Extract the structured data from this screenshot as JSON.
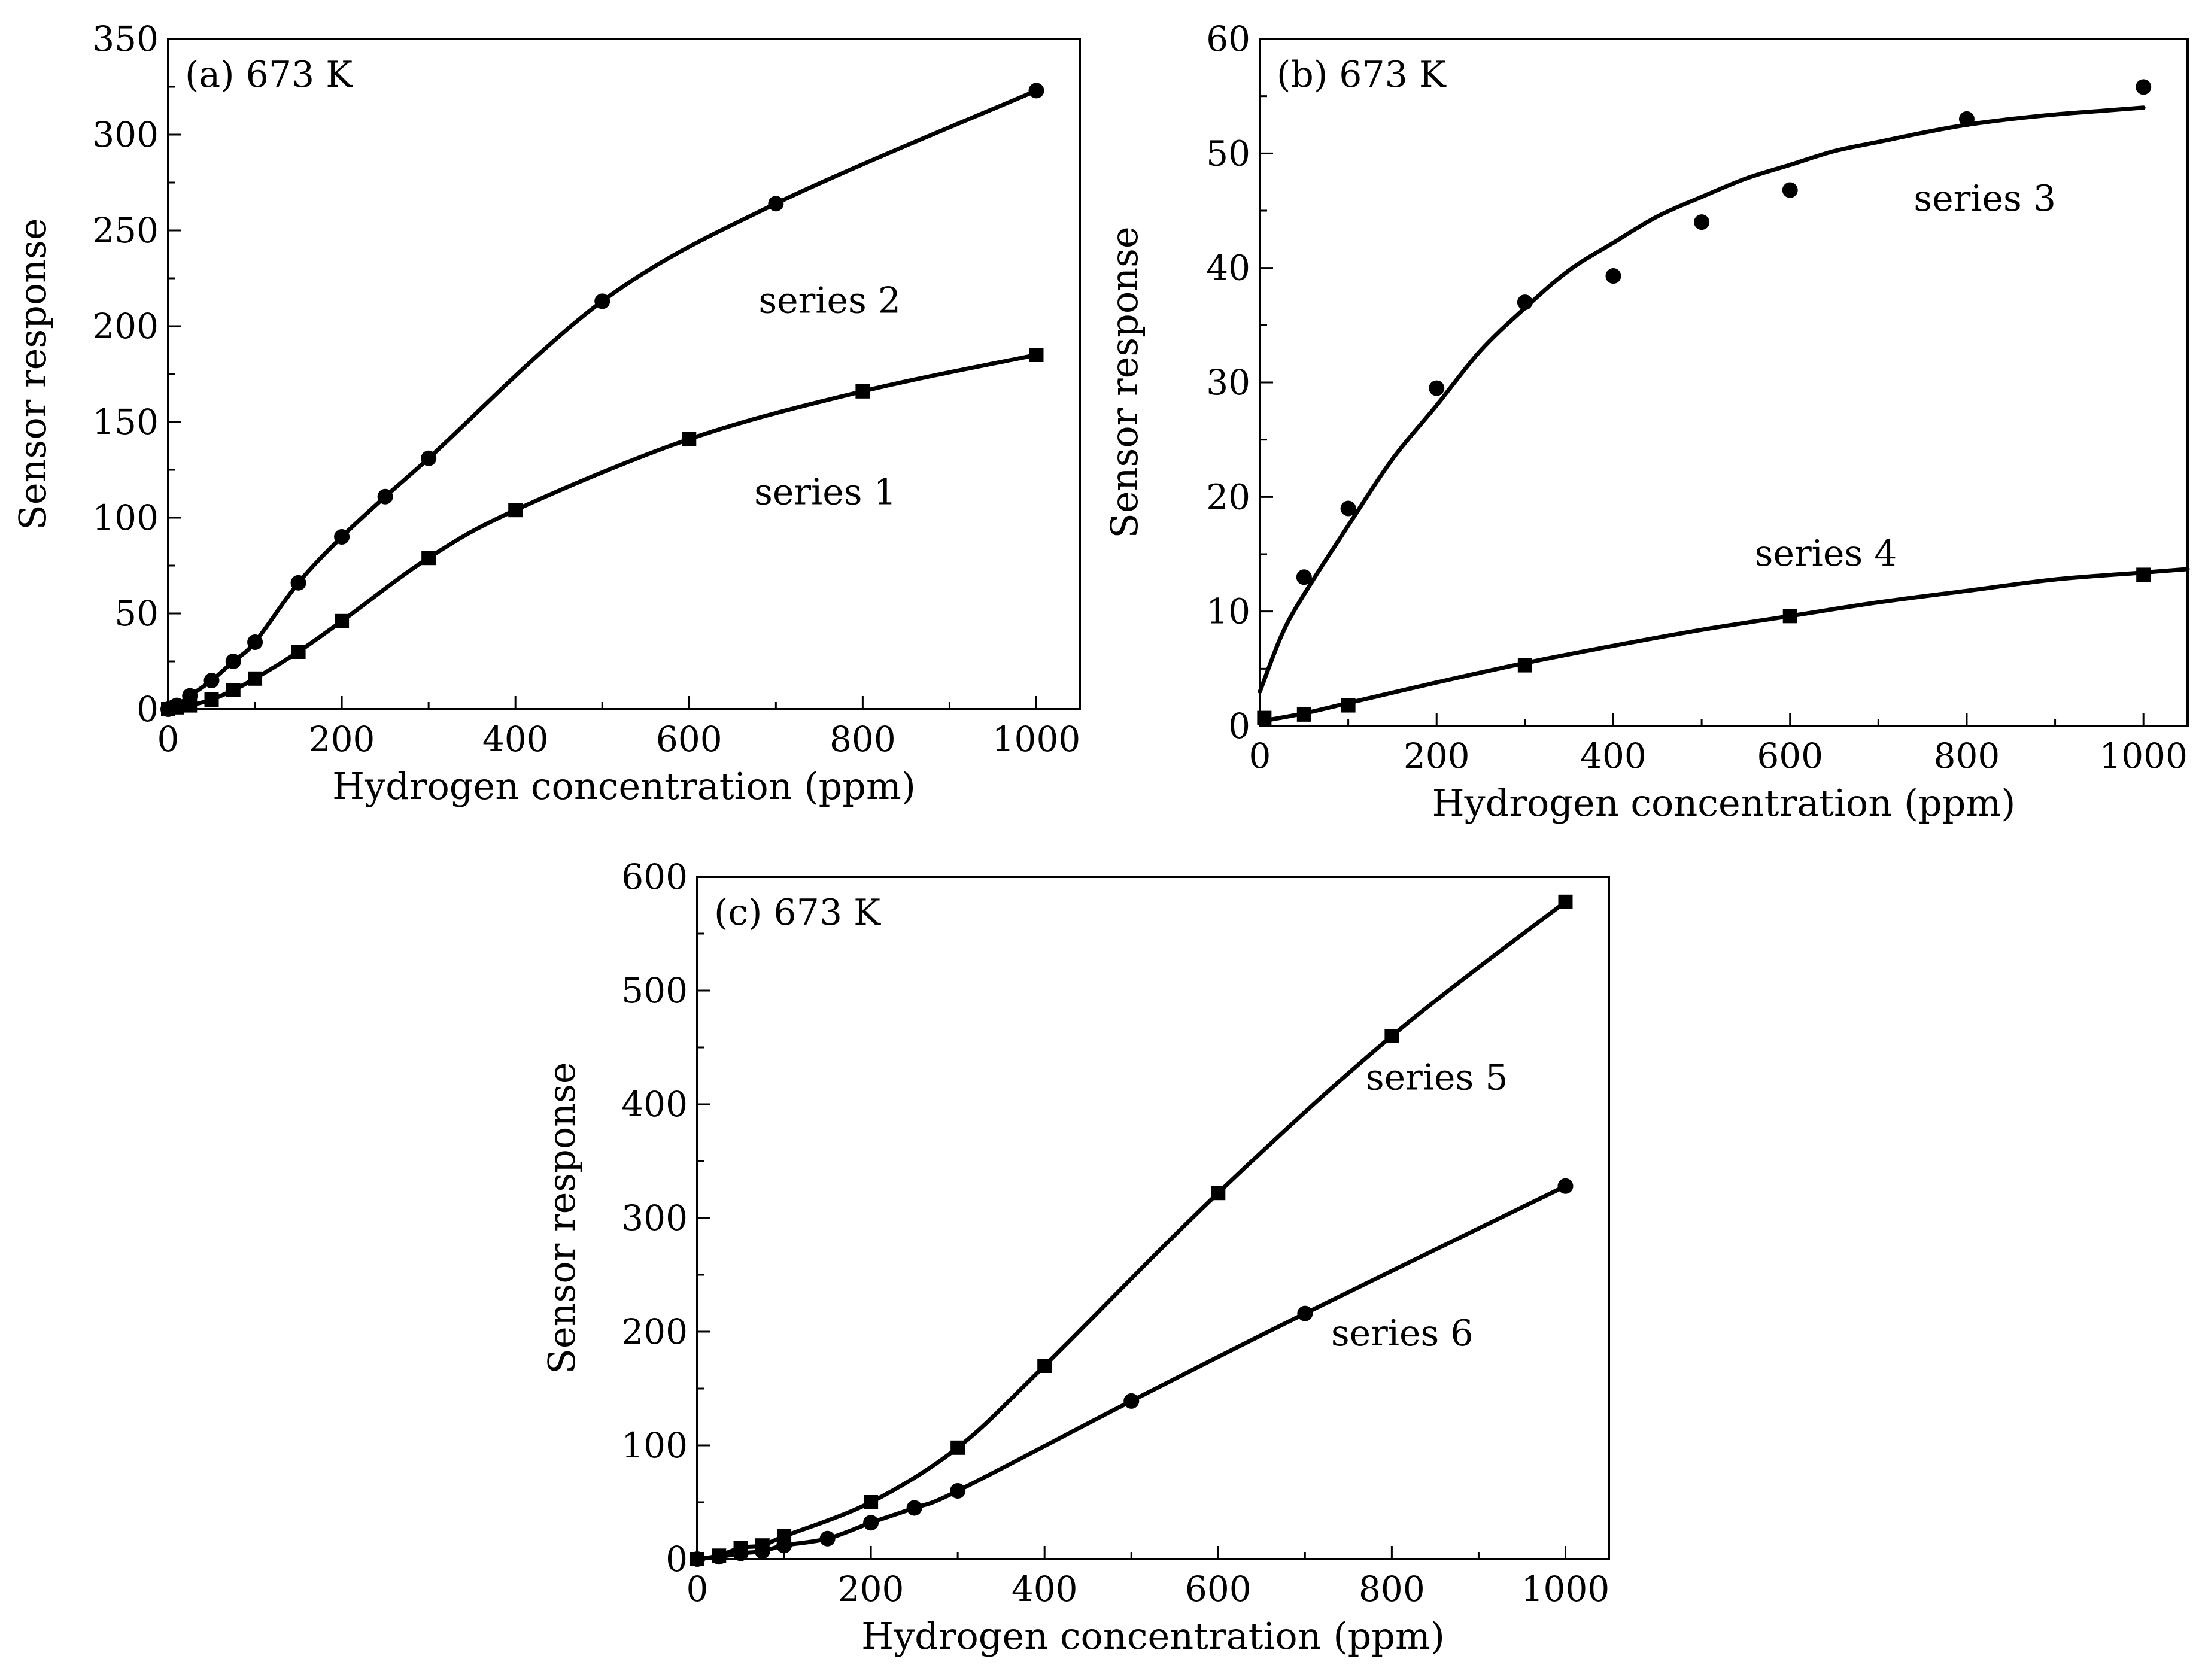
{
  "figure": {
    "background": "#ffffff",
    "line_color": "#000000"
  },
  "chart_data": [
    {
      "type": "line",
      "panel": "a",
      "panel_label": "(a) 673 K",
      "xlabel": "Hydrogen concentration (ppm)",
      "ylabel": "Sensor response",
      "xlim": [
        0,
        1050
      ],
      "ylim": [
        0,
        350
      ],
      "xticks": [
        0,
        200,
        400,
        600,
        800,
        1000
      ],
      "yticks": [
        0,
        50,
        100,
        150,
        200,
        250,
        300,
        350
      ],
      "series": [
        {
          "name": "series 1",
          "marker": "square",
          "label_at": [
            675,
            107
          ],
          "x": [
            0,
            10,
            25,
            50,
            75,
            100,
            150,
            200,
            300,
            400,
            600,
            800,
            1000
          ],
          "y": [
            0,
            1,
            2,
            5,
            10,
            16,
            30,
            46,
            79,
            104,
            141,
            166,
            185
          ]
        },
        {
          "name": "series 2",
          "marker": "circle",
          "label_at": [
            680,
            207
          ],
          "x": [
            0,
            10,
            25,
            50,
            75,
            100,
            150,
            200,
            250,
            300,
            500,
            700,
            1000
          ],
          "y": [
            0,
            2,
            7,
            15,
            25,
            35,
            66,
            90,
            111,
            131,
            213,
            264,
            323
          ]
        }
      ]
    },
    {
      "type": "line",
      "panel": "b",
      "panel_label": "(b) 673 K",
      "xlabel": "Hydrogen concentration (ppm)",
      "ylabel": "Sensor response",
      "xlim": [
        0,
        1050
      ],
      "ylim": [
        0,
        60
      ],
      "xticks": [
        0,
        200,
        400,
        600,
        800,
        1000
      ],
      "yticks": [
        0,
        10,
        20,
        30,
        40,
        50,
        60
      ],
      "series": [
        {
          "name": "series 3",
          "marker": "circle",
          "label_at": [
            740,
            45
          ],
          "x": [
            50,
            100,
            200,
            300,
            400,
            500,
            600,
            800,
            1000
          ],
          "y": [
            13,
            19,
            29.5,
            37,
            39.3,
            44,
            46.8,
            53,
            55.8
          ],
          "fit_x": [
            0,
            25,
            50,
            100,
            150,
            200,
            250,
            300,
            350,
            400,
            450,
            500,
            550,
            600,
            650,
            700,
            750,
            800,
            850,
            900,
            950,
            1000
          ],
          "fit_y": [
            3,
            8,
            11.5,
            17.5,
            23.3,
            28,
            32.8,
            36.5,
            39.8,
            42.2,
            44.5,
            46.2,
            47.8,
            49,
            50.2,
            51,
            51.8,
            52.5,
            53,
            53.4,
            53.7,
            54
          ]
        },
        {
          "name": "series 4",
          "marker": "square",
          "label_at": [
            560,
            14
          ],
          "x": [
            5,
            50,
            100,
            300,
            600,
            1000
          ],
          "y": [
            0.7,
            1.0,
            1.8,
            5.3,
            9.6,
            13.2
          ],
          "fit_x": [
            0,
            50,
            100,
            200,
            300,
            400,
            500,
            600,
            700,
            800,
            900,
            1000,
            1050
          ],
          "fit_y": [
            0.4,
            1.1,
            2.0,
            3.8,
            5.5,
            7.0,
            8.4,
            9.6,
            10.8,
            11.8,
            12.8,
            13.4,
            13.7
          ]
        }
      ]
    },
    {
      "type": "line",
      "panel": "c",
      "panel_label": "(c) 673 K",
      "xlabel": "Hydrogen concentration (ppm)",
      "ylabel": "Sensor response",
      "xlim": [
        0,
        1050
      ],
      "ylim": [
        0,
        600
      ],
      "xticks": [
        0,
        200,
        400,
        600,
        800,
        1000
      ],
      "yticks": [
        0,
        100,
        200,
        300,
        400,
        500,
        600
      ],
      "series": [
        {
          "name": "series 5",
          "marker": "square",
          "label_at": [
            770,
            413
          ],
          "x": [
            0,
            25,
            50,
            75,
            100,
            200,
            300,
            400,
            600,
            800,
            1000
          ],
          "y": [
            0,
            3,
            10,
            12,
            20,
            50,
            98,
            170,
            322,
            460,
            578
          ]
        },
        {
          "name": "series 6",
          "marker": "circle",
          "label_at": [
            730,
            188
          ],
          "x": [
            0,
            25,
            50,
            75,
            100,
            150,
            200,
            250,
            300,
            500,
            700,
            1000
          ],
          "y": [
            0,
            2,
            5,
            7,
            12,
            18,
            32,
            45,
            60,
            139,
            216,
            328
          ]
        }
      ]
    }
  ]
}
